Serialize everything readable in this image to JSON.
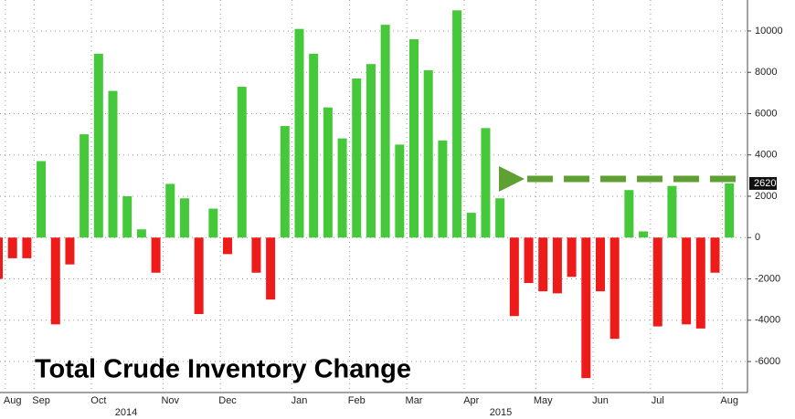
{
  "chart_data": {
    "type": "bar",
    "title": "Total Crude Inventory Change",
    "categories": [
      null,
      "Aug",
      null,
      "Sep",
      null,
      null,
      null,
      "Oct",
      null,
      null,
      null,
      null,
      "Nov",
      null,
      null,
      null,
      "Dec",
      null,
      null,
      null,
      null,
      "Jan",
      null,
      null,
      null,
      "Feb",
      null,
      null,
      null,
      "Mar",
      null,
      null,
      null,
      "Apr",
      null,
      null,
      null,
      null,
      "May",
      null,
      null,
      null,
      "Jun",
      null,
      null,
      null,
      "Jul",
      null,
      null,
      null,
      null,
      "Aug"
    ],
    "year_labels": [
      "2014",
      "2015"
    ],
    "values": [
      -2000,
      -1000,
      -1000,
      3700,
      -4200,
      -1300,
      5000,
      8900,
      7100,
      2000,
      400,
      -1700,
      2600,
      1900,
      -3700,
      1400,
      -800,
      7300,
      -1700,
      -3000,
      5400,
      10100,
      8900,
      6300,
      4800,
      7700,
      8400,
      10300,
      4500,
      9600,
      8100,
      4700,
      11000,
      1200,
      5300,
      1900,
      -3800,
      -2200,
      -2600,
      -2700,
      -1900,
      -6800,
      -2600,
      -4900,
      2300,
      300,
      -4300,
      2500,
      -4200,
      -4400,
      -1700,
      2620
    ],
    "positive_color": "#45c83a",
    "negative_color": "#ee1b1b",
    "ylim": [
      -7500,
      11500
    ],
    "yticks": [
      -6000,
      -4000,
      -2000,
      0,
      2000,
      4000,
      6000,
      8000,
      10000
    ],
    "grid": true
  }
}
